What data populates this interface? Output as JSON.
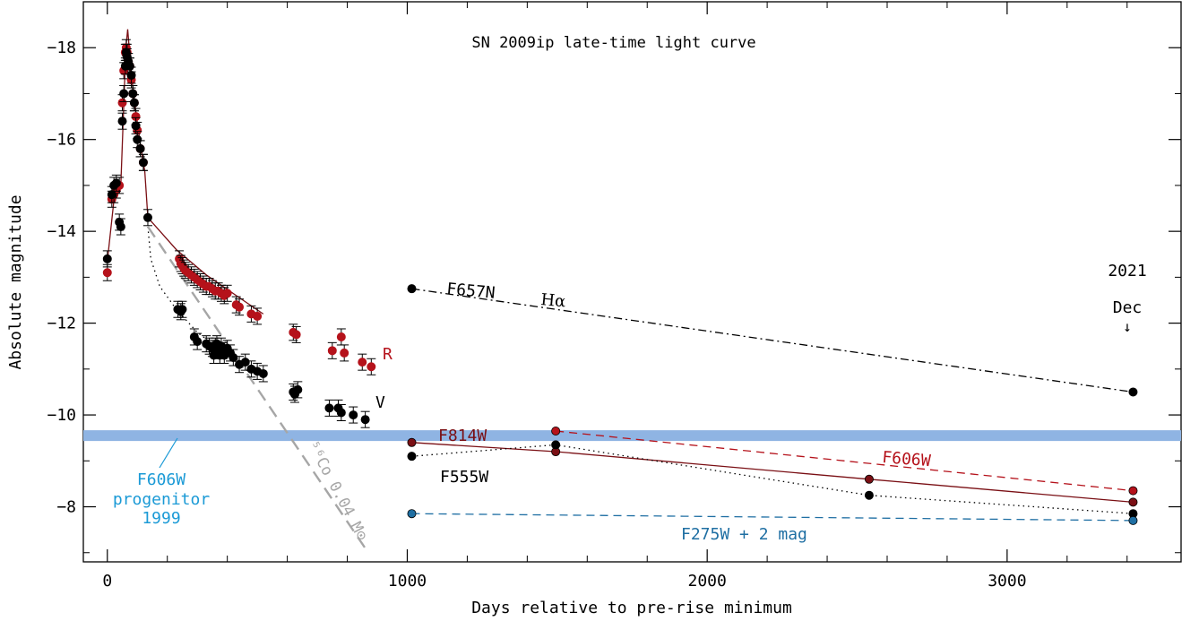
{
  "chart_data": {
    "type": "scatter",
    "title": "SN 2009ip late-time light curve",
    "xlabel": "Days relative to pre-rise minimum",
    "ylabel": "Absolute magnitude",
    "xlim": [
      -80,
      3580
    ],
    "ylim": [
      -6.8,
      -19.0
    ],
    "y_inverted": true,
    "x_ticks": [
      0,
      1000,
      2000,
      3000
    ],
    "y_ticks": [
      -8,
      -10,
      -12,
      -14,
      -16,
      -18
    ],
    "y_tick_labels": [
      "−8",
      "−10",
      "−12",
      "−14",
      "−16",
      "−18"
    ],
    "colors": {
      "red": "#b5121b",
      "darkred": "#7a0f14",
      "black": "#000000",
      "gray": "#a6a6a6",
      "blue": "#1f6fa3",
      "band": "#8fb4e3",
      "progenitor_label": "#1b9ad6"
    },
    "progenitor_band": {
      "mag": -9.55
    },
    "model_curve": [
      [
        0,
        -13.35
      ],
      [
        25,
        -14.85
      ],
      [
        45,
        -15.0
      ],
      [
        55,
        -16.8
      ],
      [
        62,
        -18.0
      ],
      [
        68,
        -18.4
      ],
      [
        80,
        -17.4
      ],
      [
        95,
        -16.6
      ],
      [
        110,
        -15.9
      ],
      [
        125,
        -15.3
      ],
      [
        135,
        -14.3
      ],
      [
        230,
        -13.6
      ],
      [
        330,
        -13.05
      ],
      [
        430,
        -12.6
      ],
      [
        520,
        -12.2
      ]
    ],
    "dotted_curve": [
      [
        135,
        -14.1
      ],
      [
        145,
        -13.4
      ],
      [
        175,
        -12.8
      ],
      [
        230,
        -12.3
      ],
      [
        300,
        -11.8
      ],
      [
        380,
        -11.4
      ],
      [
        470,
        -10.95
      ],
      [
        500,
        -10.9
      ]
    ],
    "co56_decay_line": [
      [
        135,
        -14.1
      ],
      [
        870,
        -7.0
      ]
    ],
    "co56_label": "⁵⁶Co 0.04 M⊙",
    "series": [
      {
        "name": "R",
        "color": "red",
        "x": [
          0,
          15,
          22,
          30,
          40,
          50,
          55,
          60,
          63,
          66,
          70,
          75,
          80,
          85,
          90,
          95,
          100,
          110,
          120,
          240,
          245,
          250,
          255,
          260,
          270,
          280,
          290,
          300,
          310,
          320,
          330,
          340,
          350,
          360,
          370,
          380,
          390,
          400,
          430,
          440,
          480,
          500,
          620,
          630,
          750,
          780,
          790,
          850,
          880
        ],
        "y": [
          -13.1,
          -14.7,
          -14.8,
          -14.9,
          -15.0,
          -16.8,
          -17.5,
          -17.9,
          -18.0,
          -17.9,
          -17.7,
          -17.6,
          -17.3,
          -17.0,
          -16.8,
          -16.5,
          -16.2,
          -15.8,
          -15.5,
          -13.4,
          -13.3,
          -13.25,
          -13.2,
          -13.15,
          -13.1,
          -13.05,
          -13.0,
          -12.95,
          -12.9,
          -12.85,
          -12.8,
          -12.8,
          -12.75,
          -12.7,
          -12.7,
          -12.65,
          -12.6,
          -12.65,
          -12.4,
          -12.35,
          -12.2,
          -12.15,
          -11.8,
          -11.75,
          -11.4,
          -11.7,
          -11.35,
          -11.15,
          -11.05
        ]
      },
      {
        "name": "V",
        "color": "black",
        "x": [
          0,
          15,
          22,
          30,
          40,
          45,
          50,
          55,
          60,
          63,
          66,
          70,
          75,
          80,
          85,
          90,
          95,
          100,
          110,
          120,
          135,
          235,
          245,
          250,
          290,
          300,
          330,
          340,
          350,
          355,
          360,
          365,
          370,
          375,
          380,
          385,
          390,
          400,
          410,
          420,
          440,
          460,
          480,
          500,
          520,
          620,
          625,
          635,
          740,
          770,
          780,
          820,
          860
        ],
        "y": [
          -13.4,
          -14.8,
          -15.0,
          -15.05,
          -14.2,
          -14.1,
          -16.4,
          -17.0,
          -17.6,
          -17.9,
          -17.8,
          -17.7,
          -17.6,
          -17.4,
          -17.0,
          -16.8,
          -16.3,
          -16.0,
          -15.8,
          -15.5,
          -14.3,
          -12.3,
          -12.25,
          -12.3,
          -11.7,
          -11.6,
          -11.55,
          -11.5,
          -11.45,
          -11.3,
          -11.5,
          -11.55,
          -11.4,
          -11.3,
          -11.5,
          -11.4,
          -11.3,
          -11.45,
          -11.35,
          -11.25,
          -11.1,
          -11.15,
          -11.0,
          -10.95,
          -10.9,
          -10.5,
          -10.45,
          -10.55,
          -10.15,
          -10.15,
          -10.05,
          -10.0,
          -9.9
        ]
      },
      {
        "name": "F657N",
        "label_extra": "Hα",
        "color": "black",
        "style": "dashdot",
        "x": [
          1015,
          3420
        ],
        "y": [
          -12.75,
          -10.5
        ]
      },
      {
        "name": "F814W",
        "color": "darkred",
        "style": "solid",
        "x": [
          1015,
          1495,
          2540,
          3420
        ],
        "y": [
          -9.4,
          -9.2,
          -8.6,
          -8.1
        ]
      },
      {
        "name": "F606W",
        "color": "red",
        "style": "dashed",
        "x": [
          1495,
          3420
        ],
        "y": [
          -9.65,
          -8.35
        ]
      },
      {
        "name": "F555W",
        "color": "black",
        "style": "dotted",
        "x": [
          1015,
          1495,
          2540,
          3420
        ],
        "y": [
          -9.1,
          -9.35,
          -8.25,
          -7.85
        ]
      },
      {
        "name": "F275W + 2 mag",
        "color": "blue",
        "style": "dashed",
        "x": [
          1015,
          3420
        ],
        "y": [
          -7.85,
          -7.7
        ]
      }
    ],
    "annotations": {
      "year": "2021",
      "month": "Dec",
      "arrow": "↓",
      "progenitor_line1": "F606W",
      "progenitor_line2": "progenitor",
      "progenitor_line3": "1999"
    }
  }
}
